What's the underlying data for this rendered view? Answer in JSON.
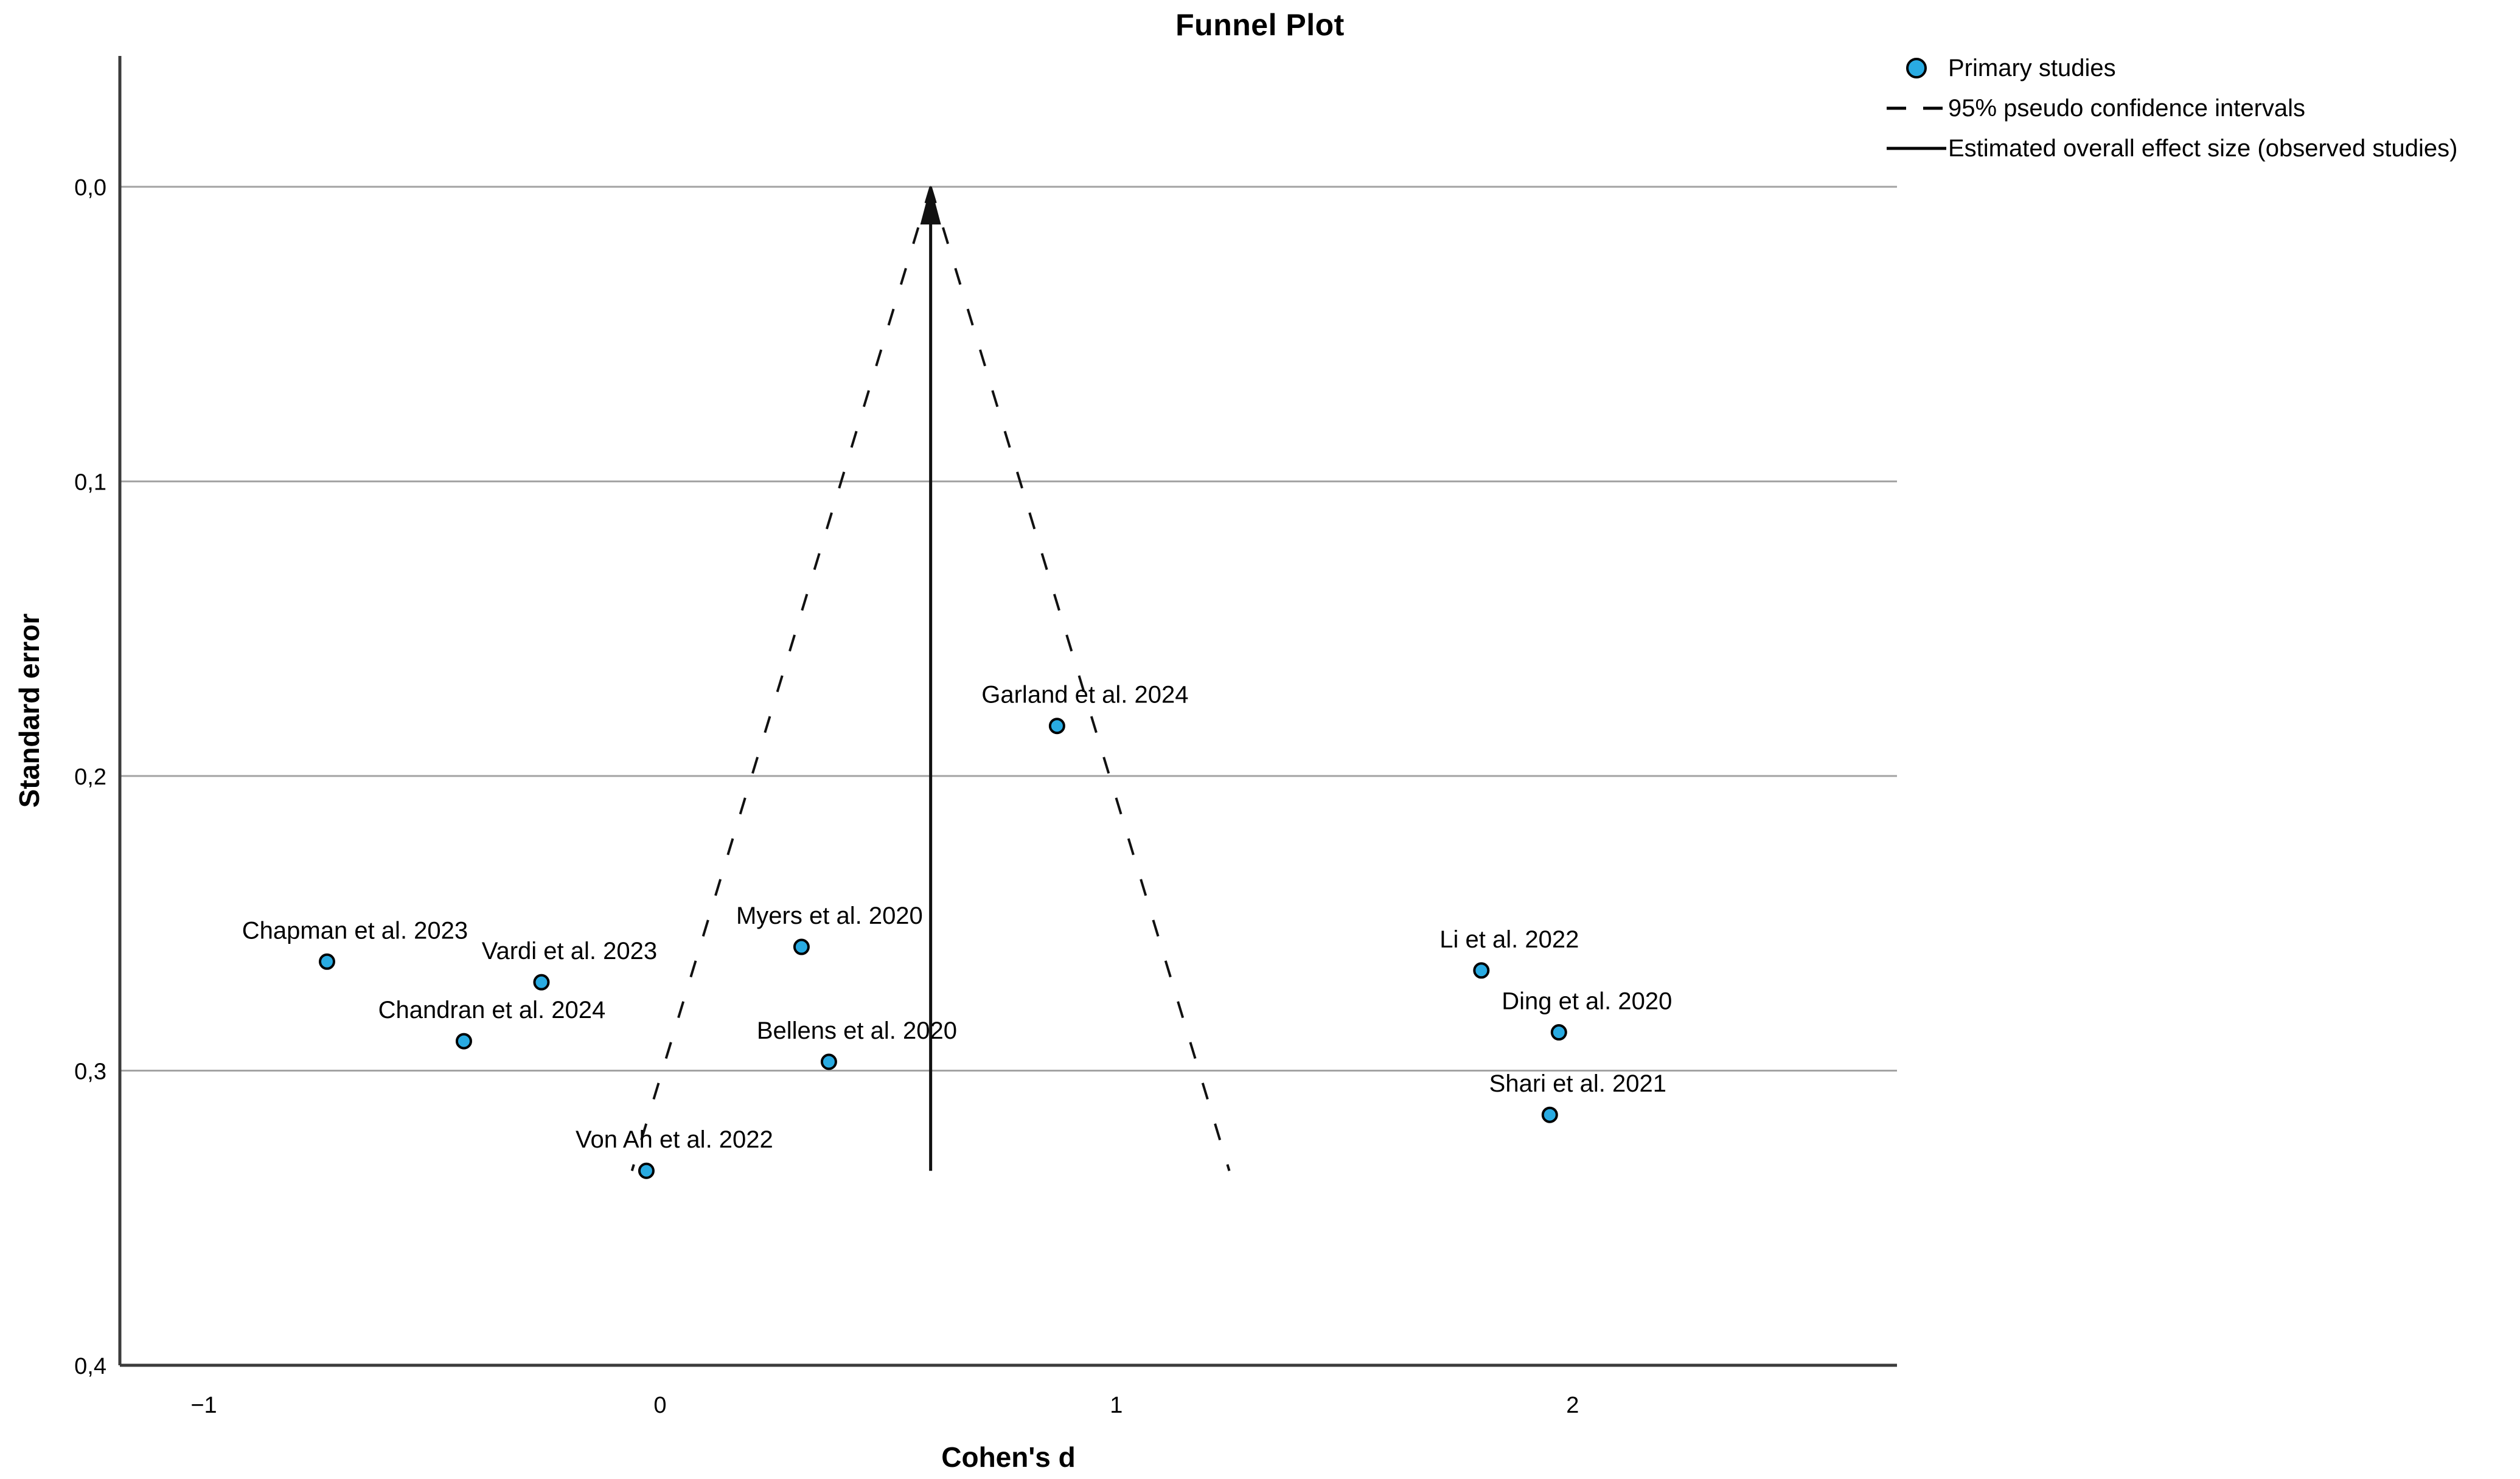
{
  "header": {
    "title": "Funnel Plot"
  },
  "legend": {
    "items": [
      {
        "icon": "circle-marker-icon",
        "label": "Primary studies"
      },
      {
        "icon": "dashed-line-icon",
        "label": "95% pseudo confidence intervals"
      },
      {
        "icon": "solid-line-icon",
        "label": "Estimated overall effect size (observed studies)"
      }
    ]
  },
  "colors": {
    "marker_fill": "#29ABE2",
    "marker_stroke": "#000000",
    "gridline": "#A3A3A3",
    "axis": "#3B3B3B",
    "funnel_line": "#111111",
    "text": "#000000"
  },
  "chart_data": {
    "type": "scatter",
    "title": "Funnel Plot",
    "xlabel": "Cohen's d",
    "ylabel": "Standard error",
    "x_ticks": [
      -1,
      0,
      1,
      2
    ],
    "x_tick_labels": [
      "−1",
      "0",
      "1",
      "2"
    ],
    "y_ticks": [
      0,
      0.1,
      0.2,
      0.3,
      0.4
    ],
    "y_tick_labels": [
      "0,0",
      "0,1",
      "0,2",
      "0,3",
      "0,4"
    ],
    "xlim": [
      -1.184,
      2.711
    ],
    "ylim_se": [
      -0.0444,
      0.4
    ],
    "y_axis_direction": "standard error increases downward",
    "grid": "horizontal gridlines at each y tick",
    "legend_position": "top-right",
    "overall_effect_d": 0.593,
    "ci_multiplier": 1.96,
    "funnel_se_bottom": 0.334,
    "points": [
      {
        "label": "Chapman et al. 2023",
        "d": -0.73,
        "se": 0.263
      },
      {
        "label": "Vardi et al. 2023",
        "d": -0.26,
        "se": 0.27
      },
      {
        "label": "Chandran et al. 2024",
        "d": -0.43,
        "se": 0.29
      },
      {
        "label": "Von Ah et al. 2022",
        "d": -0.03,
        "se": 0.334
      },
      {
        "label": "Myers et al. 2020",
        "d": 0.31,
        "se": 0.258
      },
      {
        "label": "Bellens et al. 2020",
        "d": 0.37,
        "se": 0.297
      },
      {
        "label": "Garland et al. 2024",
        "d": 0.87,
        "se": 0.183
      },
      {
        "label": "Li et al. 2022",
        "d": 1.8,
        "se": 0.266
      },
      {
        "label": "Ding et al. 2020",
        "d": 1.97,
        "se": 0.287
      },
      {
        "label": "Shari et al. 2021",
        "d": 1.95,
        "se": 0.315
      }
    ]
  }
}
